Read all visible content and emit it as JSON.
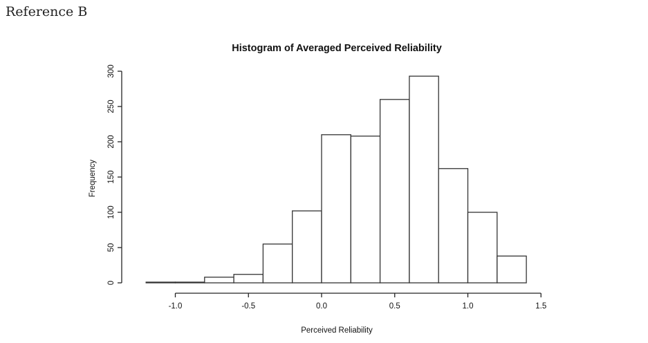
{
  "page": {
    "reference_label": "Reference B"
  },
  "chart_data": {
    "type": "bar",
    "subtype": "histogram",
    "title": "Histogram of Averaged Perceived Reliability",
    "xlabel": "Perceived Reliability",
    "ylabel": "Frequency",
    "bin_width": 0.2,
    "bins": [
      {
        "start": -1.2,
        "end": -1.0,
        "count": 1
      },
      {
        "start": -1.0,
        "end": -0.8,
        "count": 1
      },
      {
        "start": -0.8,
        "end": -0.6,
        "count": 8
      },
      {
        "start": -0.6,
        "end": -0.4,
        "count": 12
      },
      {
        "start": -0.4,
        "end": -0.2,
        "count": 55
      },
      {
        "start": -0.2,
        "end": 0.0,
        "count": 102
      },
      {
        "start": 0.0,
        "end": 0.2,
        "count": 210
      },
      {
        "start": 0.2,
        "end": 0.4,
        "count": 208
      },
      {
        "start": 0.4,
        "end": 0.6,
        "count": 260
      },
      {
        "start": 0.6,
        "end": 0.8,
        "count": 293
      },
      {
        "start": 0.8,
        "end": 1.0,
        "count": 162
      },
      {
        "start": 1.0,
        "end": 1.2,
        "count": 100
      },
      {
        "start": 1.2,
        "end": 1.4,
        "count": 38
      }
    ],
    "xlim": [
      -1.2,
      1.5
    ],
    "ylim": [
      0,
      300
    ],
    "x_ticks": [
      -1.0,
      -0.5,
      0.0,
      0.5,
      1.0,
      1.5
    ],
    "x_tick_labels": [
      "-1.0",
      "-0.5",
      "0.0",
      "0.5",
      "1.0",
      "1.5"
    ],
    "y_ticks": [
      0,
      50,
      100,
      150,
      200,
      250,
      300
    ],
    "y_tick_labels": [
      "0",
      "50",
      "100",
      "150",
      "200",
      "250",
      "300"
    ],
    "grid": false,
    "legend": "none"
  }
}
